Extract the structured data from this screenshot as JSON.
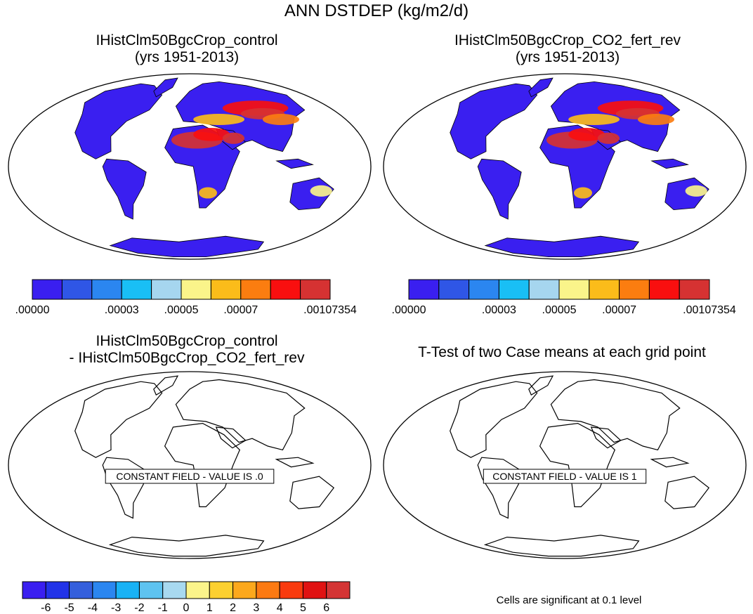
{
  "title": "ANN DSTDEP (kg/m2/d)",
  "panels": [
    {
      "id": "control",
      "title_line1": "IHistClm50BgcCrop_control",
      "title_line2": "(yrs 1951-2013)",
      "type": "field"
    },
    {
      "id": "co2",
      "title_line1": "IHistClm50BgcCrop_CO2_fert_rev",
      "title_line2": "(yrs 1951-2013)",
      "type": "field"
    },
    {
      "id": "diff",
      "title_line1": "IHistClm50BgcCrop_control",
      "title_line2": "- IHistClm50BgcCrop_CO2_fert_rev",
      "type": "diff",
      "message": "CONSTANT FIELD - VALUE IS .0"
    },
    {
      "id": "ttest",
      "title_line1": "T-Test of two Case means at each grid point",
      "type": "ttest",
      "message": "CONSTANT FIELD - VALUE IS 1"
    }
  ],
  "colorbar_top": {
    "colors": [
      "#3a1ff0",
      "#2f56e6",
      "#2b86f0",
      "#19bff5",
      "#a6d6ef",
      "#faf48a",
      "#fbbc1a",
      "#fb7d10",
      "#f90f0f",
      "#d63232"
    ],
    "labels": [
      ".00000",
      ".00003",
      ".00005",
      ".00007",
      ".00107354"
    ],
    "label_edges": [
      0,
      3,
      5,
      7,
      10
    ]
  },
  "colorbar_bottom": {
    "colors": [
      "#3a1ff0",
      "#2233e8",
      "#345fdc",
      "#2b86f0",
      "#19b2f5",
      "#5ec3f0",
      "#a8d9f0",
      "#fbf48a",
      "#fcd030",
      "#fca81c",
      "#fc7a12",
      "#f93a0e",
      "#e01212",
      "#d43434"
    ],
    "labels": [
      "-6",
      "-5",
      "-4",
      "-3",
      "-2",
      "-1",
      "0",
      "1",
      "2",
      "3",
      "4",
      "5",
      "6"
    ]
  },
  "note": "Cells are significant at 0.1 level"
}
